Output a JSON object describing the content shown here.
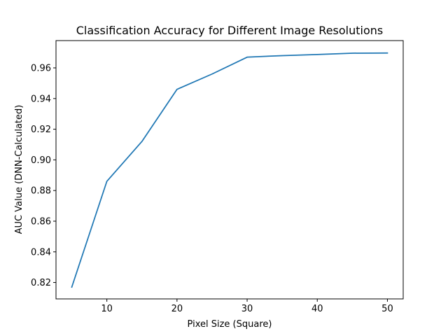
{
  "chart_data": {
    "type": "line",
    "title": "Classification Accuracy for Different Image Resolutions",
    "xlabel": "Pixel Size (Square)",
    "ylabel": "AUC Value (DNN-Calculated)",
    "xlim": [
      2.75,
      52.25
    ],
    "ylim": [
      0.8093,
      0.9778
    ],
    "xticks": [
      10,
      20,
      30,
      40,
      50
    ],
    "xtick_labels": [
      "10",
      "20",
      "30",
      "40",
      "50"
    ],
    "yticks": [
      0.82,
      0.84,
      0.86,
      0.88,
      0.9,
      0.92,
      0.94,
      0.96
    ],
    "ytick_labels": [
      "0.82",
      "0.84",
      "0.86",
      "0.88",
      "0.90",
      "0.92",
      "0.94",
      "0.96"
    ],
    "grid": false,
    "series": [
      {
        "color": "#1f77b4",
        "x": [
          5,
          10,
          15,
          20,
          25,
          30,
          35,
          40,
          45,
          50
        ],
        "y": [
          0.817,
          0.886,
          0.912,
          0.946,
          0.956,
          0.967,
          0.968,
          0.9687,
          0.9696,
          0.9697
        ]
      }
    ]
  }
}
